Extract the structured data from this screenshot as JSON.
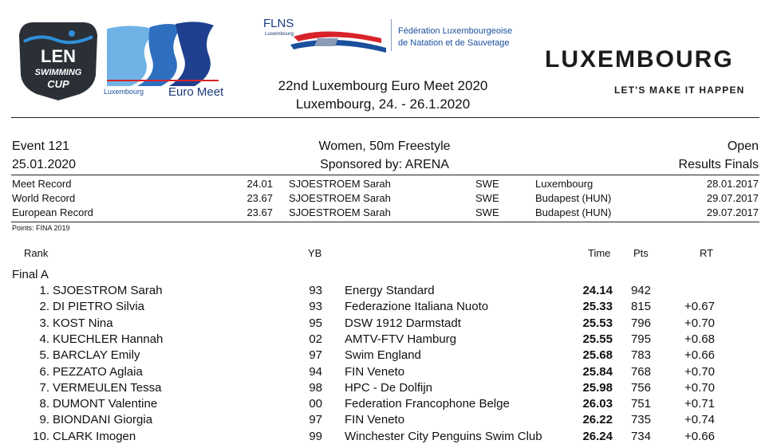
{
  "header": {
    "len_logo_text": [
      "LEN",
      "SWIMMING",
      "CUP"
    ],
    "euromeet_small": "Luxembourg",
    "euromeet_big": "Euro Meet",
    "flns_abbr": "FLNS",
    "flns_sub": "Luxembourg",
    "federation_line1": "Fédération Luxembourgeoise",
    "federation_line2": "de Natation et de Sauvetage",
    "lux_word": "LUXEMBOURG",
    "lux_tagline": "LET'S MAKE IT HAPPEN",
    "meet_title": "22nd Luxembourg Euro Meet 2020",
    "meet_subtitle": "Luxembourg, 24. - 26.1.2020"
  },
  "event": {
    "number": "Event 121",
    "date": "25.01.2020",
    "name": "Women, 50m Freestyle",
    "sponsor": "Sponsored by: ARENA",
    "category": "Open",
    "results_type": "Results Finals"
  },
  "records": [
    {
      "label": "Meet Record",
      "time": "24.01",
      "name": "SJOESTROEM Sarah",
      "nat": "SWE",
      "place": "Luxembourg",
      "date": "28.01.2017"
    },
    {
      "label": "World Record",
      "time": "23.67",
      "name": "SJOESTROEM Sarah",
      "nat": "SWE",
      "place": "Budapest (HUN)",
      "date": "29.07.2017"
    },
    {
      "label": "European Record",
      "time": "23.67",
      "name": "SJOESTROEM Sarah",
      "nat": "SWE",
      "place": "Budapest (HUN)",
      "date": "29.07.2017"
    }
  ],
  "points_note": "Points: FINA 2019",
  "columns": {
    "rank": "Rank",
    "yb": "YB",
    "time": "Time",
    "pts": "Pts",
    "rt": "RT"
  },
  "final_label": "Final A",
  "results": [
    {
      "rank": "1.",
      "name": "SJOESTROM Sarah",
      "yb": "93",
      "club": "Energy Standard",
      "time": "24.14",
      "pts": "942",
      "rt": ""
    },
    {
      "rank": "2.",
      "name": "DI PIETRO Silvia",
      "yb": "93",
      "club": "Federazione Italiana Nuoto",
      "time": "25.33",
      "pts": "815",
      "rt": "+0.67"
    },
    {
      "rank": "3.",
      "name": "KOST Nina",
      "yb": "95",
      "club": "DSW 1912 Darmstadt",
      "time": "25.53",
      "pts": "796",
      "rt": "+0.70"
    },
    {
      "rank": "4.",
      "name": "KUECHLER Hannah",
      "yb": "02",
      "club": "AMTV-FTV Hamburg",
      "time": "25.55",
      "pts": "795",
      "rt": "+0.68"
    },
    {
      "rank": "5.",
      "name": "BARCLAY Emily",
      "yb": "97",
      "club": "Swim England",
      "time": "25.68",
      "pts": "783",
      "rt": "+0.66"
    },
    {
      "rank": "6.",
      "name": "PEZZATO Aglaia",
      "yb": "94",
      "club": "FIN Veneto",
      "time": "25.84",
      "pts": "768",
      "rt": "+0.70"
    },
    {
      "rank": "7.",
      "name": "VERMEULEN Tessa",
      "yb": "98",
      "club": "HPC - De Dolfijn",
      "time": "25.98",
      "pts": "756",
      "rt": "+0.70"
    },
    {
      "rank": "8.",
      "name": "DUMONT Valentine",
      "yb": "00",
      "club": "Federation Francophone Belge",
      "time": "26.03",
      "pts": "751",
      "rt": "+0.71"
    },
    {
      "rank": "9.",
      "name": "BIONDANI Giorgia",
      "yb": "97",
      "club": "FIN Veneto",
      "time": "26.22",
      "pts": "735",
      "rt": "+0.74"
    },
    {
      "rank": "10.",
      "name": "CLARK Imogen",
      "yb": "99",
      "club": "Winchester City Penguins Swim Club",
      "time": "26.24",
      "pts": "734",
      "rt": "+0.66"
    }
  ],
  "colors": {
    "len_dark": "#2b2f36",
    "len_blue": "#2f8fd8",
    "wave_light": "#6fb3e6",
    "wave_dark": "#1f3f8f",
    "flns_red": "#d8232a",
    "flns_blue": "#1a4f9c"
  }
}
